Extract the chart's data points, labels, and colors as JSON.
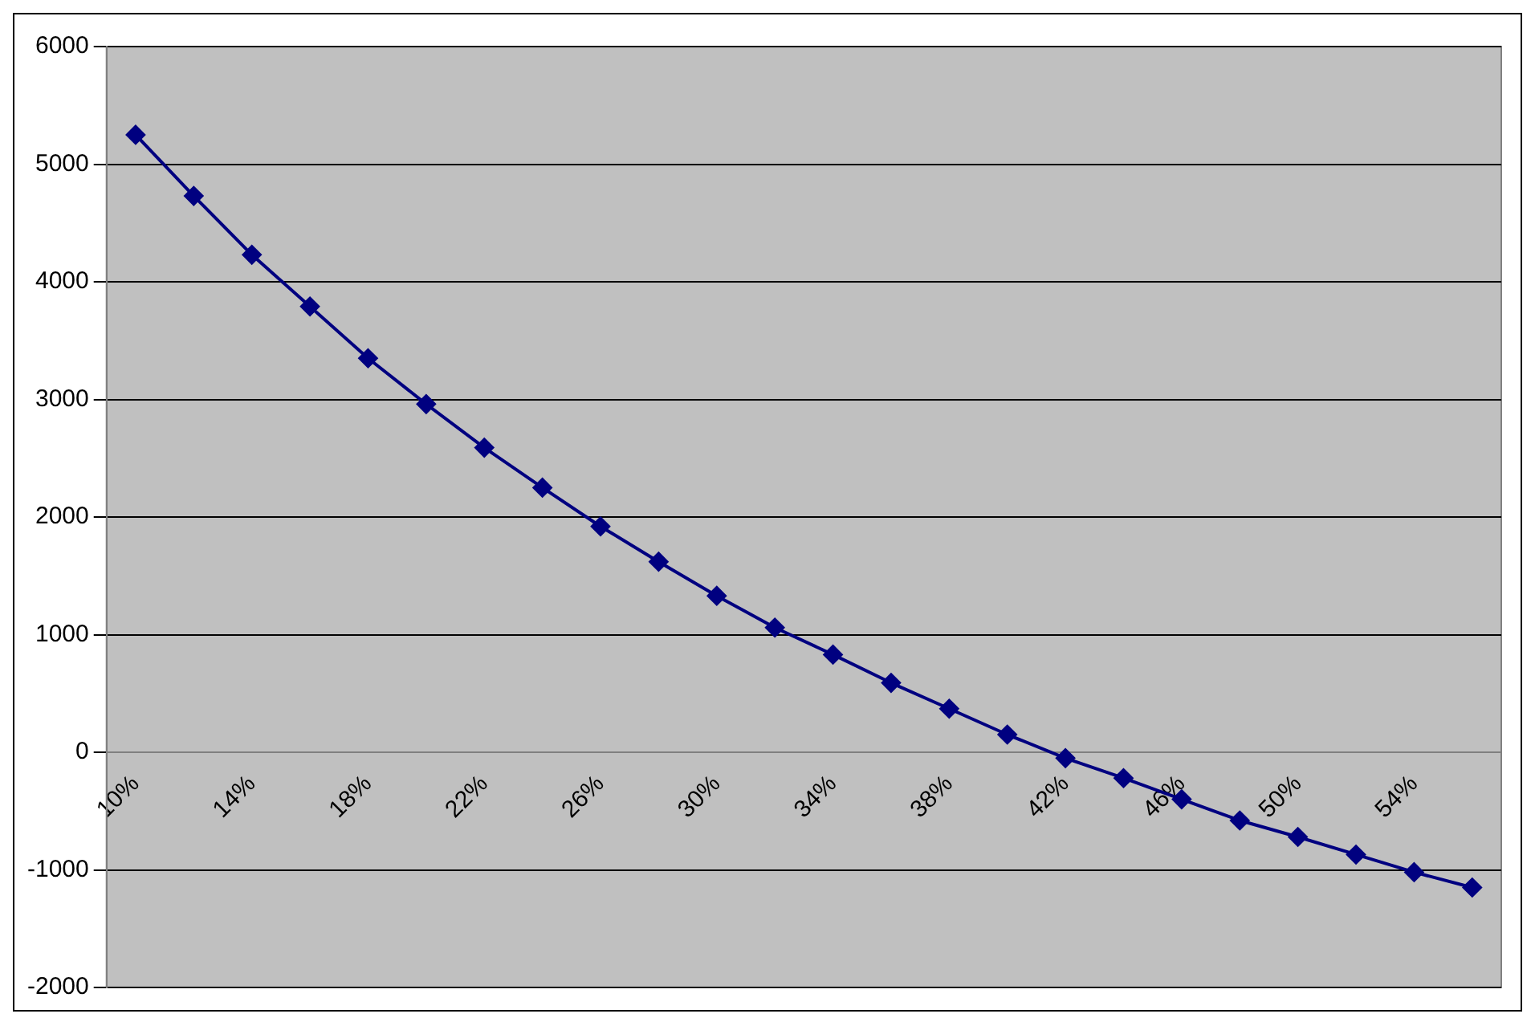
{
  "chart_data": {
    "type": "line",
    "categories": [
      "10%",
      null,
      "14%",
      null,
      "18%",
      null,
      "22%",
      null,
      "26%",
      null,
      "30%",
      null,
      "34%",
      null,
      "38%",
      null,
      "42%",
      null,
      "46%",
      null,
      "50%",
      null,
      "54%",
      null
    ],
    "series": [
      {
        "color": "#000080",
        "values": [
          5250,
          4730,
          4230,
          3790,
          3350,
          2960,
          2590,
          2250,
          1920,
          1620,
          1330,
          1060,
          830,
          590,
          370,
          150,
          -50,
          -220,
          -400,
          -580,
          -720,
          -870,
          -1020,
          -1150
        ]
      }
    ],
    "ylim": [
      -2000,
      6000
    ],
    "yticks": [
      -2000,
      -1000,
      0,
      1000,
      2000,
      3000,
      4000,
      5000,
      6000
    ],
    "grid": "y",
    "legend": false,
    "marker": "diamond",
    "line_style": "solid"
  }
}
